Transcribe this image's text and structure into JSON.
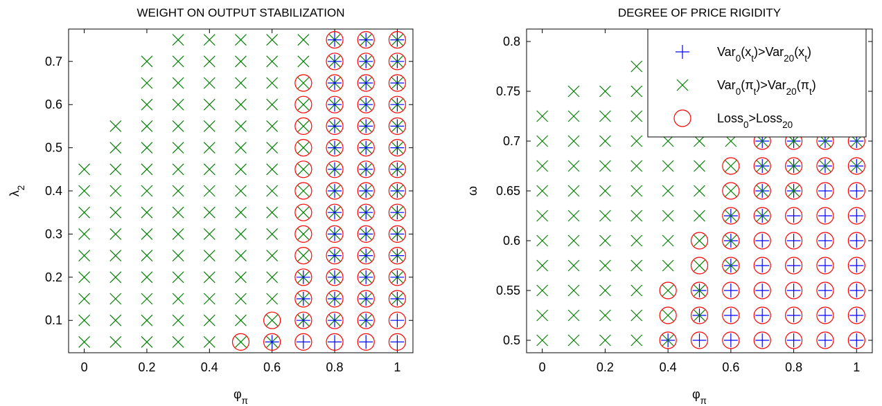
{
  "chart_data": [
    {
      "type": "scatter",
      "title": "WEIGHT ON OUTPUT STABILIZATION",
      "xlabel": "φ_{π}",
      "ylabel": "λ_{2}",
      "xlim": [
        -0.05,
        1.05
      ],
      "ylim": [
        0.025,
        0.775
      ],
      "xticks": [
        0,
        0.2,
        0.4,
        0.6,
        0.8,
        1
      ],
      "yticks": [
        0.1,
        0.2,
        0.3,
        0.4,
        0.5,
        0.6,
        0.7
      ],
      "series": [
        {
          "color": "#008000",
          "marker": "x",
          "x": [
            0,
            0,
            0,
            0,
            0,
            0,
            0,
            0,
            0,
            0.1,
            0.1,
            0.1,
            0.1,
            0.1,
            0.1,
            0.1,
            0.1,
            0.1,
            0.1,
            0.1,
            0.2,
            0.2,
            0.2,
            0.2,
            0.2,
            0.2,
            0.2,
            0.2,
            0.2,
            0.2,
            0.2,
            0.2,
            0.2,
            0.2,
            0.3,
            0.3,
            0.3,
            0.3,
            0.3,
            0.3,
            0.3,
            0.3,
            0.3,
            0.3,
            0.3,
            0.3,
            0.3,
            0.3,
            0.3,
            0.4,
            0.4,
            0.4,
            0.4,
            0.4,
            0.4,
            0.4,
            0.4,
            0.4,
            0.4,
            0.4,
            0.4,
            0.4,
            0.4,
            0.4,
            0.5,
            0.5,
            0.5,
            0.5,
            0.5,
            0.5,
            0.5,
            0.5,
            0.5,
            0.5,
            0.5,
            0.5,
            0.5,
            0.5,
            0.5,
            0.6,
            0.6,
            0.6,
            0.6,
            0.6,
            0.6,
            0.6,
            0.6,
            0.6,
            0.6,
            0.6,
            0.6,
            0.6,
            0.6,
            0.6,
            0.7,
            0.7,
            0.7,
            0.7,
            0.7,
            0.7,
            0.7,
            0.7,
            0.7,
            0.7,
            0.7,
            0.7,
            0.7,
            0.7,
            0.8,
            0.8,
            0.8,
            0.8,
            0.8,
            0.8,
            0.8,
            0.8,
            0.8,
            0.8,
            0.8,
            0.8,
            0.8,
            0.8,
            0.9,
            0.9,
            0.9,
            0.9,
            0.9,
            0.9,
            0.9,
            0.9,
            0.9,
            0.9,
            0.9,
            0.9,
            0.9,
            0.9,
            1,
            1,
            1,
            1,
            1,
            1,
            1,
            1,
            1,
            1,
            1,
            1,
            1
          ],
          "y": [
            0.05,
            0.1,
            0.15,
            0.2,
            0.25,
            0.3,
            0.35,
            0.4,
            0.45,
            0.05,
            0.1,
            0.15,
            0.2,
            0.25,
            0.3,
            0.35,
            0.4,
            0.45,
            0.5,
            0.55,
            0.05,
            0.1,
            0.15,
            0.2,
            0.25,
            0.3,
            0.35,
            0.4,
            0.45,
            0.5,
            0.55,
            0.6,
            0.65,
            0.7,
            0.05,
            0.1,
            0.15,
            0.2,
            0.25,
            0.3,
            0.35,
            0.4,
            0.45,
            0.5,
            0.55,
            0.6,
            0.65,
            0.7,
            0.75,
            0.05,
            0.1,
            0.15,
            0.2,
            0.25,
            0.3,
            0.35,
            0.4,
            0.45,
            0.5,
            0.55,
            0.6,
            0.65,
            0.7,
            0.75,
            0.05,
            0.1,
            0.15,
            0.2,
            0.25,
            0.3,
            0.35,
            0.4,
            0.45,
            0.5,
            0.55,
            0.6,
            0.65,
            0.7,
            0.75,
            0.05,
            0.1,
            0.15,
            0.2,
            0.25,
            0.3,
            0.35,
            0.4,
            0.45,
            0.5,
            0.55,
            0.6,
            0.65,
            0.7,
            0.75,
            0.1,
            0.15,
            0.2,
            0.25,
            0.3,
            0.35,
            0.4,
            0.45,
            0.5,
            0.55,
            0.6,
            0.65,
            0.7,
            0.75,
            0.1,
            0.15,
            0.2,
            0.25,
            0.3,
            0.35,
            0.4,
            0.45,
            0.5,
            0.55,
            0.6,
            0.65,
            0.7,
            0.75,
            0.1,
            0.15,
            0.2,
            0.25,
            0.3,
            0.35,
            0.4,
            0.45,
            0.5,
            0.55,
            0.6,
            0.65,
            0.7,
            0.75,
            0.15,
            0.2,
            0.25,
            0.3,
            0.35,
            0.4,
            0.45,
            0.5,
            0.55,
            0.6,
            0.65,
            0.7,
            0.75
          ]
        },
        {
          "color": "#0000ff",
          "marker": "+",
          "x": [
            0.6,
            0.7,
            0.7,
            0.7,
            0.7,
            0.8,
            0.8,
            0.8,
            0.8,
            0.8,
            0.8,
            0.8,
            0.8,
            0.8,
            0.8,
            0.8,
            0.8,
            0.8,
            0.8,
            0.8,
            0.9,
            0.9,
            0.9,
            0.9,
            0.9,
            0.9,
            0.9,
            0.9,
            0.9,
            0.9,
            0.9,
            0.9,
            0.9,
            0.9,
            0.9,
            1,
            1,
            1,
            1,
            1,
            1,
            1,
            1,
            1,
            1,
            1,
            1,
            1,
            1,
            1
          ],
          "y": [
            0.05,
            0.05,
            0.1,
            0.15,
            0.2,
            0.05,
            0.1,
            0.15,
            0.2,
            0.25,
            0.3,
            0.35,
            0.4,
            0.45,
            0.5,
            0.55,
            0.6,
            0.65,
            0.7,
            0.75,
            0.05,
            0.1,
            0.15,
            0.2,
            0.25,
            0.3,
            0.35,
            0.4,
            0.45,
            0.5,
            0.55,
            0.6,
            0.65,
            0.7,
            0.75,
            0.05,
            0.1,
            0.15,
            0.2,
            0.25,
            0.3,
            0.35,
            0.4,
            0.45,
            0.5,
            0.55,
            0.6,
            0.65,
            0.7,
            0.75
          ]
        },
        {
          "color": "#ff0000",
          "marker": "o",
          "x": [
            0.5,
            0.6,
            0.6,
            0.7,
            0.7,
            0.7,
            0.7,
            0.7,
            0.7,
            0.7,
            0.7,
            0.7,
            0.7,
            0.7,
            0.7,
            0.7,
            0.8,
            0.8,
            0.8,
            0.8,
            0.8,
            0.8,
            0.8,
            0.8,
            0.8,
            0.8,
            0.8,
            0.8,
            0.8,
            0.8,
            0.8,
            0.9,
            0.9,
            0.9,
            0.9,
            0.9,
            0.9,
            0.9,
            0.9,
            0.9,
            0.9,
            0.9,
            0.9,
            0.9,
            0.9,
            0.9,
            1,
            1,
            1,
            1,
            1,
            1,
            1,
            1,
            1,
            1,
            1,
            1,
            1,
            1,
            1
          ],
          "y": [
            0.05,
            0.05,
            0.1,
            0.05,
            0.1,
            0.15,
            0.2,
            0.25,
            0.3,
            0.35,
            0.4,
            0.45,
            0.5,
            0.55,
            0.6,
            0.65,
            0.05,
            0.1,
            0.15,
            0.2,
            0.25,
            0.3,
            0.35,
            0.4,
            0.45,
            0.5,
            0.55,
            0.6,
            0.65,
            0.7,
            0.75,
            0.05,
            0.1,
            0.15,
            0.2,
            0.25,
            0.3,
            0.35,
            0.4,
            0.45,
            0.5,
            0.55,
            0.6,
            0.65,
            0.7,
            0.75,
            0.05,
            0.1,
            0.15,
            0.2,
            0.25,
            0.3,
            0.35,
            0.4,
            0.45,
            0.5,
            0.55,
            0.6,
            0.65,
            0.7,
            0.75
          ]
        }
      ]
    },
    {
      "type": "scatter",
      "title": "DEGREE OF PRICE RIGIDITY",
      "xlabel": "φ_{π}",
      "ylabel": "ω",
      "xlim": [
        -0.05,
        1.05
      ],
      "ylim": [
        0.4875,
        0.8125
      ],
      "xticks": [
        0,
        0.2,
        0.4,
        0.6,
        0.8,
        1
      ],
      "yticks": [
        0.5,
        0.55,
        0.6,
        0.65,
        0.7,
        0.75,
        0.8
      ],
      "legend": "upper right",
      "series": [
        {
          "name": "Var_{0}(x_{t})>Var_{20}(x_{t})",
          "color": "#0000ff",
          "marker": "+",
          "x": [
            0.4,
            0.5,
            0.5,
            0.5,
            0.6,
            0.6,
            0.6,
            0.6,
            0.6,
            0.6,
            0.7,
            0.7,
            0.7,
            0.7,
            0.7,
            0.7,
            0.7,
            0.7,
            0.7,
            0.7,
            0.7,
            0.7,
            0.7,
            0.8,
            0.8,
            0.8,
            0.8,
            0.8,
            0.8,
            0.8,
            0.8,
            0.8,
            0.8,
            0.8,
            0.8,
            0.8,
            0.9,
            0.9,
            0.9,
            0.9,
            0.9,
            0.9,
            0.9,
            0.9,
            0.9,
            0.9,
            0.9,
            0.9,
            0.9,
            1,
            1,
            1,
            1,
            1,
            1,
            1,
            1,
            1,
            1,
            1,
            1,
            1
          ],
          "y": [
            0.5,
            0.5,
            0.525,
            0.55,
            0.5,
            0.525,
            0.55,
            0.575,
            0.6,
            0.625,
            0.5,
            0.525,
            0.55,
            0.575,
            0.6,
            0.625,
            0.65,
            0.675,
            0.7,
            0.725,
            0.75,
            0.775,
            0.8,
            0.5,
            0.525,
            0.55,
            0.575,
            0.6,
            0.625,
            0.65,
            0.675,
            0.7,
            0.725,
            0.75,
            0.775,
            0.8,
            0.5,
            0.525,
            0.55,
            0.575,
            0.6,
            0.625,
            0.65,
            0.675,
            0.7,
            0.725,
            0.75,
            0.775,
            0.8,
            0.5,
            0.525,
            0.55,
            0.575,
            0.6,
            0.625,
            0.65,
            0.675,
            0.7,
            0.725,
            0.75,
            0.775,
            0.8
          ]
        },
        {
          "name": "Var_{0}(π_{t})>Var_{20}(π_{t})",
          "color": "#008000",
          "marker": "x",
          "x": [
            0,
            0,
            0,
            0,
            0,
            0,
            0,
            0,
            0,
            0,
            0.1,
            0.1,
            0.1,
            0.1,
            0.1,
            0.1,
            0.1,
            0.1,
            0.1,
            0.1,
            0.1,
            0.2,
            0.2,
            0.2,
            0.2,
            0.2,
            0.2,
            0.2,
            0.2,
            0.2,
            0.2,
            0.2,
            0.3,
            0.3,
            0.3,
            0.3,
            0.3,
            0.3,
            0.3,
            0.3,
            0.3,
            0.3,
            0.3,
            0.3,
            0.4,
            0.4,
            0.4,
            0.4,
            0.4,
            0.4,
            0.4,
            0.4,
            0.4,
            0.4,
            0.4,
            0.4,
            0.5,
            0.5,
            0.5,
            0.5,
            0.5,
            0.5,
            0.5,
            0.5,
            0.5,
            0.5,
            0.5,
            0.6,
            0.6,
            0.6,
            0.6,
            0.6,
            0.6,
            0.6,
            0.6,
            0.6,
            0.7,
            0.7,
            0.7,
            0.7,
            0.7,
            0.7,
            0.7,
            0.7,
            0.8,
            0.8,
            0.8,
            0.8,
            0.8,
            0.8,
            0.8,
            0.9,
            0.9,
            0.9,
            0.9,
            0.9,
            0.9,
            1,
            1,
            1,
            1,
            1,
            1
          ],
          "y": [
            0.5,
            0.525,
            0.55,
            0.575,
            0.6,
            0.625,
            0.65,
            0.675,
            0.7,
            0.725,
            0.5,
            0.525,
            0.55,
            0.575,
            0.6,
            0.625,
            0.65,
            0.675,
            0.7,
            0.725,
            0.75,
            0.5,
            0.525,
            0.55,
            0.575,
            0.6,
            0.625,
            0.65,
            0.675,
            0.7,
            0.725,
            0.75,
            0.5,
            0.525,
            0.55,
            0.575,
            0.6,
            0.625,
            0.65,
            0.675,
            0.7,
            0.725,
            0.75,
            0.775,
            0.5,
            0.525,
            0.55,
            0.575,
            0.6,
            0.625,
            0.65,
            0.675,
            0.7,
            0.725,
            0.75,
            0.775,
            0.525,
            0.55,
            0.575,
            0.6,
            0.625,
            0.65,
            0.675,
            0.7,
            0.725,
            0.75,
            0.775,
            0.575,
            0.6,
            0.625,
            0.65,
            0.675,
            0.7,
            0.725,
            0.75,
            0.775,
            0.625,
            0.65,
            0.675,
            0.7,
            0.725,
            0.75,
            0.775,
            0.8,
            0.65,
            0.675,
            0.7,
            0.725,
            0.75,
            0.775,
            0.8,
            0.675,
            0.7,
            0.725,
            0.75,
            0.775,
            0.8,
            0.675,
            0.7,
            0.725,
            0.75,
            0.775,
            0.8
          ]
        },
        {
          "name": "Loss_{0}>Loss_{20}",
          "color": "#ff0000",
          "marker": "o",
          "x": [
            0.4,
            0.4,
            0.4,
            0.5,
            0.5,
            0.5,
            0.5,
            0.5,
            0.6,
            0.6,
            0.6,
            0.6,
            0.6,
            0.6,
            0.6,
            0.6,
            0.7,
            0.7,
            0.7,
            0.7,
            0.7,
            0.7,
            0.7,
            0.7,
            0.7,
            0.7,
            0.7,
            0.7,
            0.7,
            0.8,
            0.8,
            0.8,
            0.8,
            0.8,
            0.8,
            0.8,
            0.8,
            0.8,
            0.8,
            0.8,
            0.8,
            0.8,
            0.9,
            0.9,
            0.9,
            0.9,
            0.9,
            0.9,
            0.9,
            0.9,
            0.9,
            0.9,
            0.9,
            0.9,
            0.9,
            1,
            1,
            1,
            1,
            1,
            1,
            1,
            1,
            1,
            1,
            1,
            1,
            1
          ],
          "y": [
            0.5,
            0.525,
            0.55,
            0.5,
            0.525,
            0.55,
            0.575,
            0.6,
            0.5,
            0.525,
            0.55,
            0.575,
            0.6,
            0.625,
            0.65,
            0.675,
            0.5,
            0.525,
            0.55,
            0.575,
            0.6,
            0.625,
            0.65,
            0.675,
            0.7,
            0.725,
            0.75,
            0.775,
            0.8,
            0.5,
            0.525,
            0.55,
            0.575,
            0.6,
            0.625,
            0.65,
            0.675,
            0.7,
            0.725,
            0.75,
            0.775,
            0.8,
            0.5,
            0.525,
            0.55,
            0.575,
            0.6,
            0.625,
            0.65,
            0.675,
            0.7,
            0.725,
            0.75,
            0.775,
            0.8,
            0.5,
            0.525,
            0.55,
            0.575,
            0.6,
            0.625,
            0.65,
            0.675,
            0.7,
            0.725,
            0.75,
            0.775,
            0.8
          ]
        }
      ]
    }
  ]
}
